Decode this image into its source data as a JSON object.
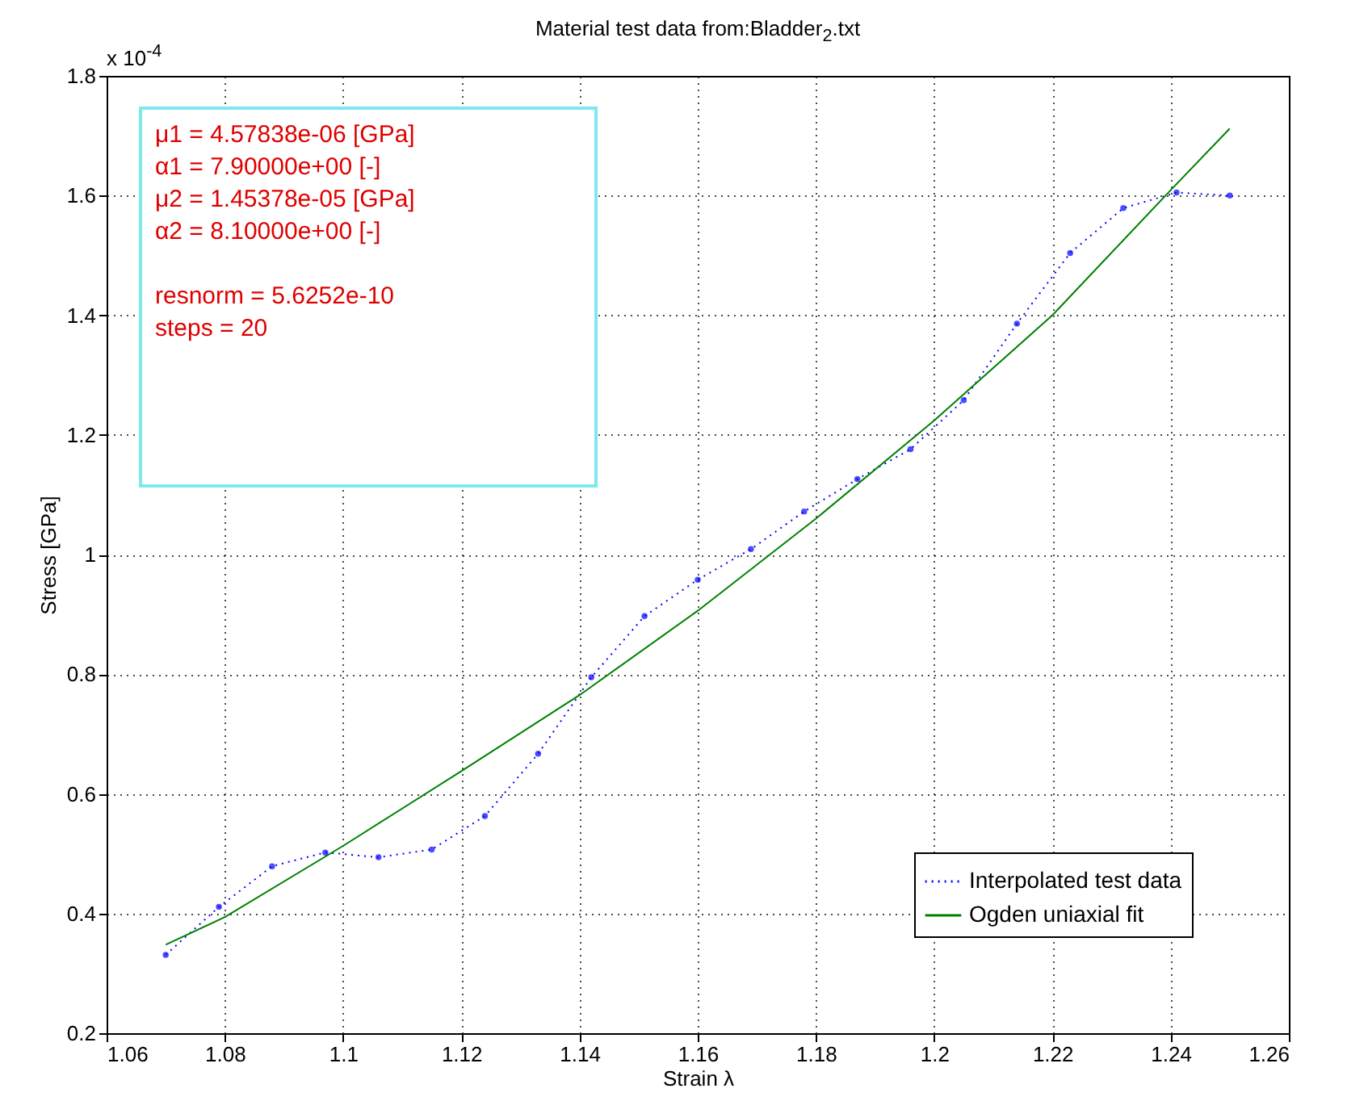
{
  "chart_data": {
    "type": "line",
    "title": "Material test data from:Bladder$_{2}$.txt",
    "xlabel": "Strain λ",
    "ylabel": "Stress [GPa]",
    "annotations": [
      "x 10$^{-4}$",
      "μ1 = 4.57838e-06 [GPa]",
      "α1 = 7.90000e+00 [-]",
      "μ2 = 1.45378e-05 [GPa]",
      "α2 = 8.10000e+00 [-]",
      "resnorm = 5.6252e-10",
      "steps = 20"
    ],
    "xlim": [
      1.06,
      1.26
    ],
    "xticks": [
      1.06,
      1.08,
      1.1,
      1.12,
      1.14,
      1.16,
      1.18,
      1.2,
      1.22,
      1.24,
      1.26
    ],
    "ylim": [
      0.2,
      1.8
    ],
    "yticks": [
      0.2,
      0.4,
      0.6,
      0.8,
      1,
      1.2,
      1.4,
      1.6,
      1.8
    ],
    "grid": true,
    "legend": "bottom right",
    "series": [
      {
        "name": "Interpolated test data",
        "color": "#0000ff",
        "marker": "circle",
        "line_style": "dotted",
        "x": [
          1.07,
          1.079,
          1.088,
          1.097,
          1.106,
          1.115,
          1.124,
          1.133,
          1.142,
          1.151,
          1.16,
          1.169,
          1.178,
          1.187,
          1.196,
          1.205,
          1.214,
          1.223,
          1.232,
          1.241,
          1.25
        ],
        "values": [
          0.331,
          0.411,
          0.479,
          0.502,
          0.494,
          0.507,
          0.563,
          0.667,
          0.795,
          0.897,
          0.958,
          1.009,
          1.072,
          1.126,
          1.176,
          1.258,
          1.386,
          1.504,
          1.579,
          1.605,
          1.6
        ]
      },
      {
        "name": "Ogden uniaxial fit",
        "color": "#008000",
        "marker": "none",
        "line_style": "solid",
        "x": [
          1.07,
          1.08,
          1.1,
          1.12,
          1.14,
          1.16,
          1.18,
          1.2,
          1.22,
          1.24,
          1.25
        ],
        "values": [
          0.348,
          0.394,
          0.513,
          0.638,
          0.765,
          0.906,
          1.06,
          1.224,
          1.4,
          1.609,
          1.712
        ]
      }
    ]
  }
}
